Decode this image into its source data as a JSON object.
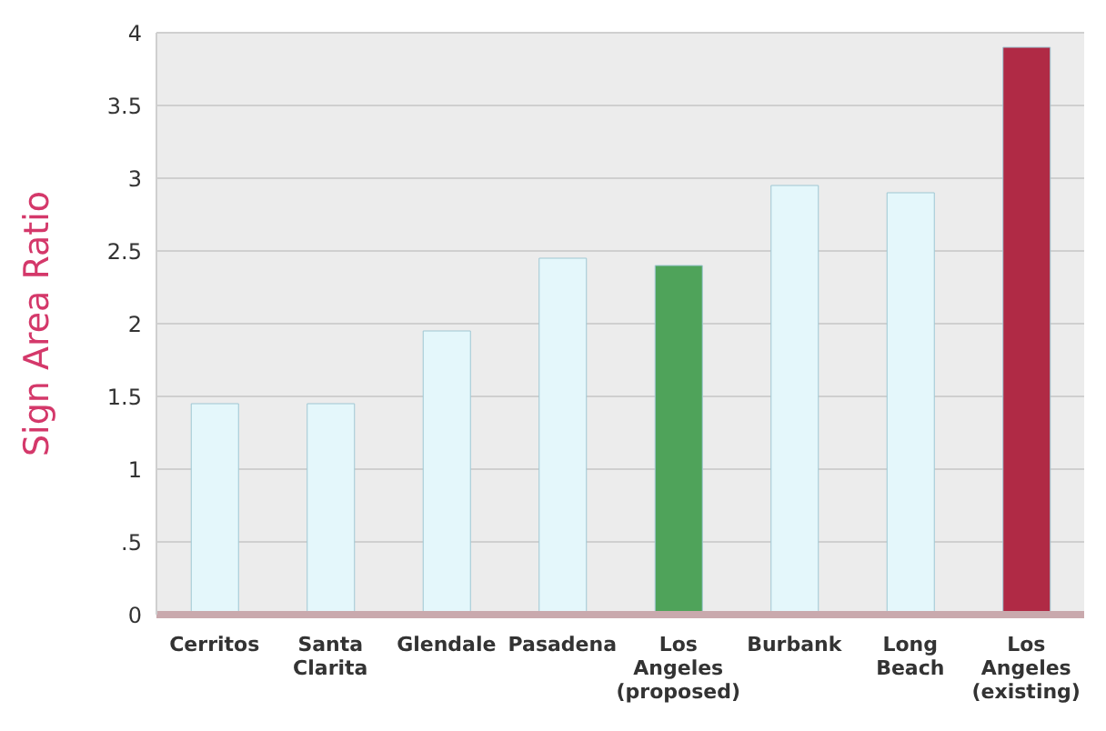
{
  "chart_data": {
    "type": "bar",
    "ylabel": "Sign Area Ratio",
    "categories": [
      "Cerritos",
      "Santa Clarita",
      "Glendale",
      "Pasadena",
      "Los Angeles (proposed)",
      "Burbank",
      "Long Beach",
      "Los Angeles (existing)"
    ],
    "values": [
      1.45,
      1.45,
      1.95,
      2.45,
      2.4,
      2.95,
      2.9,
      3.9
    ],
    "colors": [
      "#e4f7fb",
      "#e4f7fb",
      "#e4f7fb",
      "#e4f7fb",
      "#4fa35a",
      "#e4f7fb",
      "#e4f7fb",
      "#b02a45"
    ],
    "ylim": [
      0,
      4
    ],
    "yticks": [
      0,
      {
        "value": 0.5,
        "label": ".5"
      },
      1,
      1.5,
      2,
      2.5,
      3,
      3.5,
      4
    ],
    "grid": "y"
  }
}
